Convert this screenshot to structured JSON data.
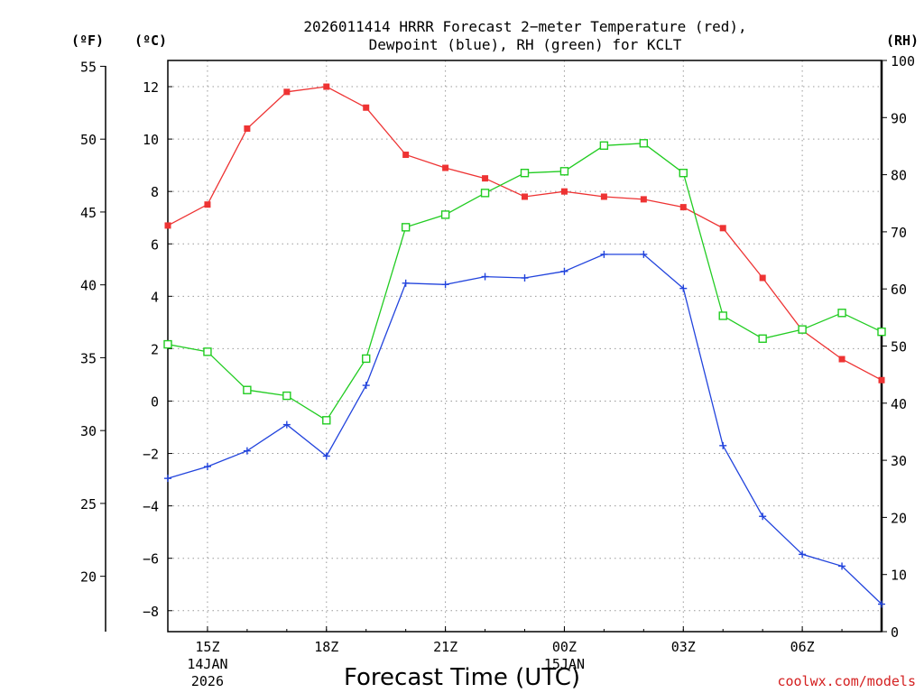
{
  "chart_data": {
    "type": "line",
    "title_lines": [
      "2026011414 HRRR Forecast 2−meter Temperature (red),",
      "Dewpoint (blue), RH (green) for KCLT"
    ],
    "xlabel": "Forecast Time (UTC)",
    "credit": "coolwx.com/models",
    "units": {
      "fahrenheit": "(ºF)",
      "celsius": "(ºC)",
      "rh": "(RH)"
    },
    "x_hours": [
      14,
      15,
      16,
      17,
      18,
      19,
      20,
      21,
      22,
      23,
      24,
      25,
      26,
      27,
      28,
      29,
      30,
      31,
      32
    ],
    "x_range": [
      14,
      32
    ],
    "x_ticks": [
      {
        "hour": 15,
        "label": "15Z",
        "date": "14JAN",
        "year": "2026"
      },
      {
        "hour": 18,
        "label": "18Z"
      },
      {
        "hour": 21,
        "label": "21Z"
      },
      {
        "hour": 24,
        "label": "00Z",
        "date": "15JAN"
      },
      {
        "hour": 27,
        "label": "03Z"
      },
      {
        "hour": 30,
        "label": "06Z"
      }
    ],
    "celsius_axis": {
      "min": -8.8,
      "max": 13.0,
      "ticks": [
        -8,
        -6,
        -4,
        -2,
        0,
        2,
        4,
        6,
        8,
        10,
        12
      ],
      "tick_labels": [
        "−8",
        "−6",
        "−4",
        "−2",
        "0",
        "2",
        "4",
        "6",
        "8",
        "10",
        "12"
      ]
    },
    "fahrenheit_axis": {
      "min": 16.2,
      "max": 55.4,
      "ticks": [
        20,
        25,
        30,
        35,
        40,
        45,
        50,
        55
      ],
      "tick_labels": [
        "20",
        "25",
        "30",
        "35",
        "40",
        "45",
        "50",
        "55"
      ]
    },
    "rh_axis": {
      "min": 0,
      "max": 100,
      "ticks": [
        0,
        10,
        20,
        30,
        40,
        50,
        60,
        70,
        80,
        90,
        100
      ],
      "tick_labels": [
        "0",
        "10",
        "20",
        "30",
        "40",
        "50",
        "60",
        "70",
        "80",
        "90",
        "100"
      ]
    },
    "series": [
      {
        "name": "Temperature",
        "unit": "C",
        "color": "#ee3333",
        "marker": "filled-square",
        "values": [
          6.7,
          7.5,
          10.4,
          11.8,
          12.0,
          11.2,
          9.4,
          8.9,
          8.5,
          7.8,
          8.0,
          7.8,
          7.7,
          7.4,
          6.6,
          4.7,
          2.7,
          1.6,
          0.8
        ]
      },
      {
        "name": "Dewpoint",
        "unit": "C",
        "color": "#2244dd",
        "marker": "plus",
        "values": [
          -2.95,
          -2.5,
          -1.9,
          -0.9,
          -2.1,
          0.6,
          4.5,
          4.45,
          4.75,
          4.7,
          4.95,
          5.6,
          5.6,
          4.3,
          -1.7,
          -4.4,
          -5.85,
          -6.3,
          -7.75
        ]
      },
      {
        "name": "RH",
        "unit": "%",
        "color": "#22cc22",
        "marker": "open-square",
        "values": [
          50.3,
          49.0,
          42.3,
          41.3,
          37.0,
          47.8,
          70.8,
          73.0,
          76.8,
          80.3,
          80.6,
          85.1,
          85.5,
          80.3,
          55.3,
          51.3,
          52.9,
          55.8,
          52.5
        ]
      }
    ]
  }
}
